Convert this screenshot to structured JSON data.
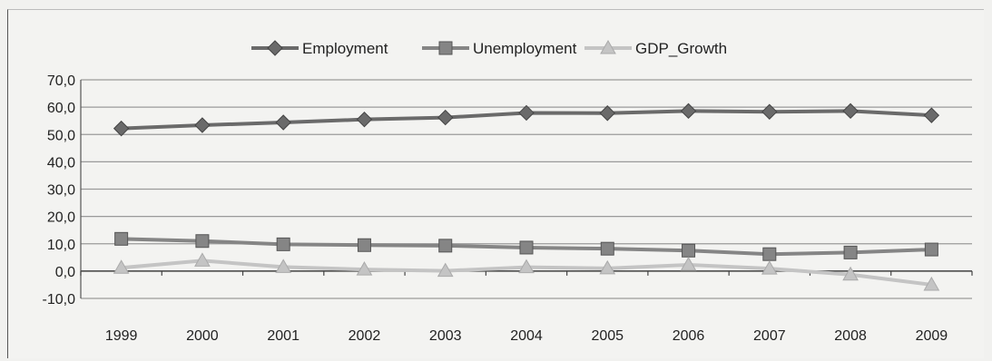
{
  "chart_data": {
    "type": "line",
    "title": "",
    "xlabel": "",
    "ylabel": "",
    "categories": [
      "1999",
      "2000",
      "2001",
      "2002",
      "2003",
      "2004",
      "2005",
      "2006",
      "2007",
      "2008",
      "2009"
    ],
    "y_ticks": [
      "70,0",
      "60,0",
      "50,0",
      "40,0",
      "30,0",
      "20,0",
      "10,0",
      "0,0",
      "-10,0"
    ],
    "ylim": [
      -10,
      70
    ],
    "grid": true,
    "legend_position": "top",
    "series": [
      {
        "name": "Employment",
        "marker": "diamond",
        "color": "#6a6a6a",
        "values": [
          52.2,
          53.4,
          54.4,
          55.5,
          56.2,
          57.9,
          57.8,
          58.6,
          58.3,
          58.6,
          57.0
        ]
      },
      {
        "name": "Unemployment",
        "marker": "square",
        "color": "#858585",
        "values": [
          11.8,
          11.0,
          9.8,
          9.5,
          9.3,
          8.6,
          8.2,
          7.5,
          6.2,
          6.8,
          7.9
        ]
      },
      {
        "name": "GDP_Growth",
        "marker": "triangle",
        "color": "#c4c4c4",
        "values": [
          1.2,
          3.8,
          1.5,
          0.6,
          0.1,
          1.4,
          1.0,
          2.3,
          0.9,
          -1.3,
          -5.0
        ]
      }
    ]
  }
}
